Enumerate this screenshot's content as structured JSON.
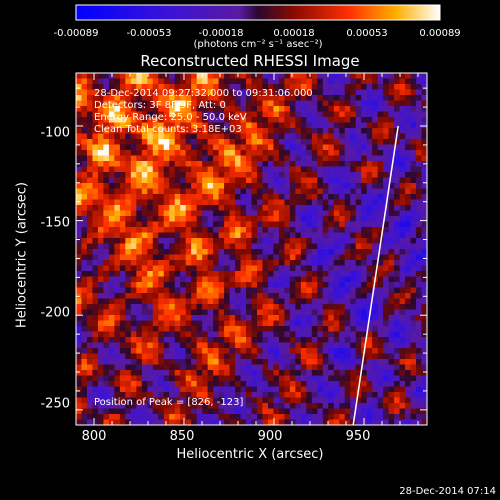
{
  "chart_data": {
    "type": "heatmap",
    "title": "Reconstructed RHESSI Image",
    "xlabel": "Heliocentric X (arcsec)",
    "ylabel": "Heliocentric Y (arcsec)",
    "x_ticks": [
      "800",
      "850",
      "900",
      "950"
    ],
    "y_ticks": [
      "-100",
      "-150",
      "-200",
      "-250"
    ],
    "xlim": [
      790,
      985
    ],
    "ylim": [
      -258,
      -72
    ],
    "colorbar": {
      "ticks": [
        "-0.00089",
        "-0.00053",
        "-0.00018",
        "0.00018",
        "0.00053",
        "0.00089"
      ],
      "range": [
        -0.00089,
        0.00089
      ],
      "label": "(photons cm⁻² s⁻¹ asec⁻²)"
    },
    "limb_line": {
      "x": [
        944,
        969
      ],
      "y": [
        -258,
        -100
      ]
    },
    "info_lines": [
      "28-Dec-2014 09:27:32.000 to 09:31:06.000",
      "Detectors: 3F 8F 9F, Att: 0",
      "Energy Range: 25.0 - 50.0 keV",
      "Clean     Total counts: 3.18E+03"
    ],
    "peak_text": "Position of Peak = [826, -123]",
    "timestamp": "28-Dec-2014 07:14"
  }
}
